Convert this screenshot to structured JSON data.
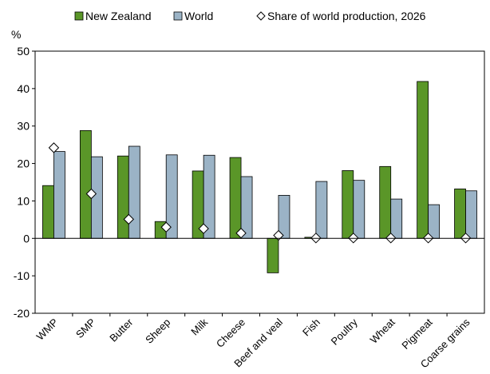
{
  "chart_data": {
    "type": "bar",
    "unit_label": "%",
    "categories": [
      "WMP",
      "SMP",
      "Butter",
      "Sheep",
      "Milk",
      "Cheese",
      "Beef and veal",
      "Fish",
      "Poultry",
      "Wheat",
      "Pigmeat",
      "Coarse grains"
    ],
    "series": [
      {
        "name": "New Zealand",
        "type": "bar",
        "color": "#5a9628",
        "values": [
          14.1,
          28.8,
          22.0,
          4.5,
          18.0,
          21.6,
          -9.2,
          0.3,
          18.1,
          19.2,
          41.9,
          13.2
        ]
      },
      {
        "name": "World",
        "type": "bar",
        "color": "#9bb3c6",
        "values": [
          23.2,
          21.8,
          24.6,
          22.3,
          22.2,
          16.5,
          11.5,
          15.2,
          15.5,
          10.5,
          9.0,
          12.7
        ]
      },
      {
        "name": "Share of world production, 2026",
        "type": "marker",
        "color": "#ffffff",
        "values": [
          24.2,
          11.9,
          5.1,
          3.0,
          2.6,
          1.4,
          0.8,
          0.1,
          0.1,
          0.1,
          0.1,
          0.1
        ]
      }
    ],
    "ylim": [
      -20,
      50
    ],
    "yticks": [
      -20,
      -10,
      0,
      10,
      20,
      30,
      40,
      50
    ],
    "grid": false,
    "legend_position": "top"
  }
}
